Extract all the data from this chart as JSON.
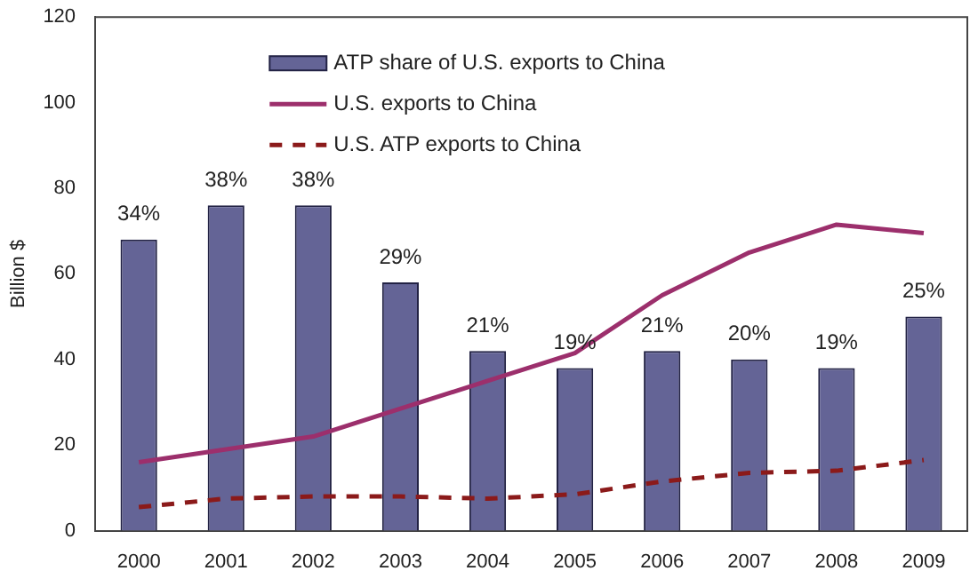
{
  "chart_data": {
    "type": "bar",
    "ylabel": "Billion $",
    "categories": [
      "2000",
      "2001",
      "2002",
      "2003",
      "2004",
      "2005",
      "2006",
      "2007",
      "2008",
      "2009"
    ],
    "series": [
      {
        "name": "ATP share of U.S. exports to China",
        "axis": "y2",
        "color": "#646496",
        "values": [
          34,
          38,
          38,
          29,
          21,
          19,
          21,
          20,
          19,
          25
        ],
        "value_labels": [
          "34%",
          "38%",
          "38%",
          "29%",
          "21%",
          "19%",
          "21%",
          "20%",
          "19%",
          "25%"
        ]
      },
      {
        "name": "U.S. exports to China",
        "type": "line",
        "color": "#9c2f6c",
        "line_style": "solid",
        "values": [
          16,
          19,
          22,
          28.5,
          35,
          41.5,
          55,
          65,
          71.5,
          69.5
        ]
      },
      {
        "name": "U.S. ATP exports to China",
        "type": "line",
        "color": "#8b1a1a",
        "line_style": "dashed",
        "values": [
          5.5,
          7.5,
          8,
          8,
          7.5,
          8.5,
          11.5,
          13.5,
          14,
          16.5
        ]
      }
    ],
    "ylim": [
      0,
      120
    ],
    "yticks": [
      0,
      20,
      40,
      60,
      80,
      100,
      120
    ],
    "y2lim": [
      0,
      60
    ],
    "grid": false,
    "legend": "top",
    "marker": "none"
  }
}
